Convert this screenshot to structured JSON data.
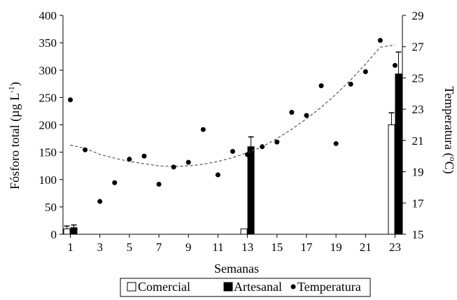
{
  "chart_data": {
    "type": "bar",
    "x_axis": {
      "label": "Semanas",
      "range": [
        0.5,
        23.5
      ],
      "ticks": [
        1,
        3,
        5,
        7,
        9,
        11,
        13,
        15,
        17,
        19,
        21,
        23
      ]
    },
    "y_axis_left": {
      "label": "Fósforo total (µg L",
      "label_superscript": "-1",
      "label_suffix": ")",
      "range": [
        0,
        400
      ],
      "ticks": [
        0,
        50,
        100,
        150,
        200,
        250,
        300,
        350,
        400
      ]
    },
    "y_axis_right": {
      "label": "Temperatura (",
      "label_superscript": "o",
      "label_suffix": "C)",
      "range": [
        15,
        29
      ],
      "ticks": [
        15,
        17,
        19,
        21,
        23,
        25,
        27,
        29
      ]
    },
    "bar_series": [
      {
        "name": "Comercial",
        "color": "#ffffff",
        "edge_color": "#000000",
        "points": [
          {
            "x": 1,
            "y": 10,
            "err": 5
          },
          {
            "x": 13,
            "y": 10,
            "err": 0
          },
          {
            "x": 23,
            "y": 200,
            "err": 22
          }
        ]
      },
      {
        "name": "Artesanal",
        "color": "#000000",
        "edge_color": "#000000",
        "points": [
          {
            "x": 1,
            "y": 12,
            "err": 5
          },
          {
            "x": 13,
            "y": 160,
            "err": 18
          },
          {
            "x": 23,
            "y": 293,
            "err": 40
          }
        ]
      }
    ],
    "scatter_series": {
      "name": "Temperatura",
      "axis": "right",
      "color": "#000000",
      "points": [
        [
          1,
          23.6
        ],
        [
          2,
          20.4
        ],
        [
          3,
          17.1
        ],
        [
          4,
          18.3
        ],
        [
          5,
          19.8
        ],
        [
          6,
          20.0
        ],
        [
          7,
          18.2
        ],
        [
          8,
          19.3
        ],
        [
          9,
          19.6
        ],
        [
          10,
          21.7
        ],
        [
          11,
          18.8
        ],
        [
          12,
          20.3
        ],
        [
          13,
          20.1
        ],
        [
          14,
          20.6
        ],
        [
          15,
          20.9
        ],
        [
          16,
          22.8
        ],
        [
          17,
          22.6
        ],
        [
          18,
          24.5
        ],
        [
          19,
          20.8
        ],
        [
          20,
          24.6
        ],
        [
          21,
          25.4
        ],
        [
          22,
          27.4
        ],
        [
          23,
          25.8
        ]
      ]
    },
    "trendline": {
      "style": "dashed",
      "color": "#555555",
      "x": [
        1,
        2,
        3,
        4,
        5,
        6,
        7,
        8,
        9,
        10,
        11,
        12,
        13,
        14,
        15,
        16,
        17,
        18,
        19,
        20,
        21,
        22,
        23
      ],
      "y": [
        163,
        157,
        146,
        139,
        133,
        129,
        125,
        124,
        125,
        128,
        133,
        140,
        149,
        160,
        175,
        192,
        211,
        232,
        256,
        282,
        311,
        342,
        346
      ]
    },
    "legend": {
      "position": "bottom-center",
      "entries": [
        "Comercial",
        "Artesanal",
        "Temperatura"
      ]
    },
    "grid": false
  }
}
